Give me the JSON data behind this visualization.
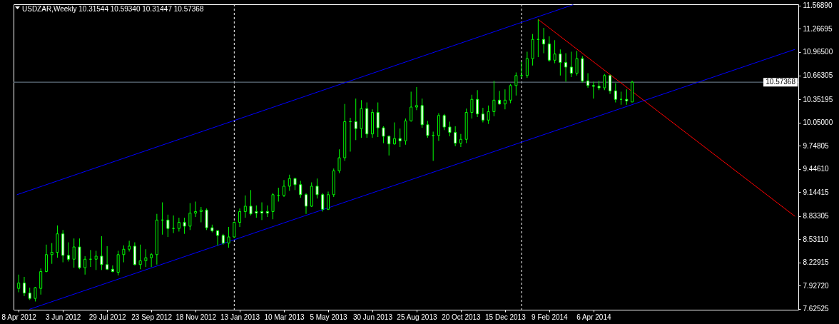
{
  "chart_data": {
    "type": "candlestick",
    "title": "USDZAR,Weekly 10.31544 10.59340 10.31447 10.57368",
    "x": [
      "2012-04-08",
      "2012-04-15",
      "2012-04-22",
      "2012-04-29",
      "2012-05-06",
      "2012-05-13",
      "2012-05-20",
      "2012-05-27",
      "2012-06-03",
      "2012-06-10",
      "2012-06-17",
      "2012-06-24",
      "2012-07-01",
      "2012-07-08",
      "2012-07-15",
      "2012-07-22",
      "2012-07-29",
      "2012-08-05",
      "2012-08-12",
      "2012-08-19",
      "2012-08-26",
      "2012-09-02",
      "2012-09-09",
      "2012-09-16",
      "2012-09-23",
      "2012-09-30",
      "2012-10-07",
      "2012-10-14",
      "2012-10-21",
      "2012-10-28",
      "2012-11-04",
      "2012-11-11",
      "2012-11-18",
      "2012-11-25",
      "2012-12-02",
      "2012-12-09",
      "2012-12-16",
      "2012-12-23",
      "2012-12-30",
      "2013-01-06",
      "2013-01-13",
      "2013-01-20",
      "2013-01-27",
      "2013-02-03",
      "2013-02-10",
      "2013-02-17",
      "2013-02-24",
      "2013-03-03",
      "2013-03-10",
      "2013-03-17",
      "2013-03-24",
      "2013-03-31",
      "2013-04-07",
      "2013-04-14",
      "2013-04-21",
      "2013-04-28",
      "2013-05-05",
      "2013-05-12",
      "2013-05-19",
      "2013-05-26",
      "2013-06-02",
      "2013-06-09",
      "2013-06-16",
      "2013-06-23",
      "2013-06-30",
      "2013-07-07",
      "2013-07-14",
      "2013-07-21",
      "2013-07-28",
      "2013-08-04",
      "2013-08-11",
      "2013-08-18",
      "2013-08-25",
      "2013-09-01",
      "2013-09-08",
      "2013-09-15",
      "2013-09-22",
      "2013-09-29",
      "2013-10-06",
      "2013-10-13",
      "2013-10-20",
      "2013-10-27",
      "2013-11-03",
      "2013-11-10",
      "2013-11-17",
      "2013-11-24",
      "2013-12-01",
      "2013-12-08",
      "2013-12-15",
      "2013-12-22",
      "2013-12-29",
      "2014-01-05",
      "2014-01-12",
      "2014-01-19",
      "2014-01-26",
      "2014-02-02",
      "2014-02-09",
      "2014-02-16",
      "2014-02-23",
      "2014-03-02",
      "2014-03-09",
      "2014-03-16",
      "2014-03-23",
      "2014-03-30",
      "2014-04-06",
      "2014-04-13",
      "2014-04-20",
      "2014-04-27",
      "2014-05-04",
      "2014-05-11",
      "2014-05-18",
      "2014-05-25"
    ],
    "ohlc": [
      [
        7.89,
        8.07,
        7.84,
        7.96
      ],
      [
        7.96,
        8.04,
        7.79,
        7.83
      ],
      [
        7.83,
        7.9,
        7.74,
        7.76
      ],
      [
        7.76,
        7.91,
        7.72,
        7.9
      ],
      [
        7.89,
        8.15,
        7.81,
        8.11
      ],
      [
        8.11,
        8.46,
        8.1,
        8.33
      ],
      [
        8.33,
        8.48,
        8.21,
        8.36
      ],
      [
        8.36,
        8.71,
        8.29,
        8.6
      ],
      [
        8.6,
        8.65,
        8.23,
        8.32
      ],
      [
        8.32,
        8.49,
        8.24,
        8.27
      ],
      [
        8.27,
        8.54,
        8.16,
        8.43
      ],
      [
        8.43,
        8.54,
        8.14,
        8.16
      ],
      [
        8.16,
        8.31,
        8.07,
        8.27
      ],
      [
        8.27,
        8.39,
        8.17,
        8.27
      ],
      [
        8.27,
        8.38,
        8.13,
        8.31
      ],
      [
        8.31,
        8.57,
        8.13,
        8.2
      ],
      [
        8.2,
        8.44,
        8.13,
        8.14
      ],
      [
        8.14,
        8.19,
        8.1,
        8.11
      ],
      [
        8.1,
        8.38,
        8.06,
        8.33
      ],
      [
        8.33,
        8.45,
        8.23,
        8.4
      ],
      [
        8.4,
        8.51,
        8.37,
        8.44
      ],
      [
        8.44,
        8.49,
        8.19,
        8.2
      ],
      [
        8.2,
        8.46,
        8.14,
        8.25
      ],
      [
        8.25,
        8.4,
        8.17,
        8.29
      ],
      [
        8.29,
        8.35,
        8.17,
        8.33
      ],
      [
        8.33,
        8.86,
        8.2,
        8.78
      ],
      [
        8.78,
        9.01,
        8.59,
        8.78
      ],
      [
        8.78,
        8.85,
        8.56,
        8.67
      ],
      [
        8.67,
        8.84,
        8.61,
        8.67
      ],
      [
        8.67,
        8.81,
        8.63,
        8.75
      ],
      [
        8.75,
        8.81,
        8.6,
        8.7
      ],
      [
        8.7,
        9.0,
        8.65,
        8.87
      ],
      [
        8.87,
        9.02,
        8.82,
        8.89
      ],
      [
        8.89,
        8.95,
        8.75,
        8.91
      ],
      [
        8.91,
        8.93,
        8.65,
        8.68
      ],
      [
        8.68,
        8.72,
        8.62,
        8.64
      ],
      [
        8.64,
        8.65,
        8.45,
        8.58
      ],
      [
        8.58,
        8.6,
        8.46,
        8.48
      ],
      [
        8.48,
        8.69,
        8.42,
        8.56
      ],
      [
        8.56,
        8.76,
        8.55,
        8.75
      ],
      [
        8.75,
        8.93,
        8.69,
        8.89
      ],
      [
        8.89,
        9.1,
        8.81,
        8.96
      ],
      [
        8.96,
        9.17,
        8.84,
        8.86
      ],
      [
        8.89,
        8.97,
        8.81,
        8.87
      ],
      [
        8.89,
        9.01,
        8.78,
        8.87
      ],
      [
        8.89,
        8.97,
        8.82,
        8.87
      ],
      [
        8.89,
        9.13,
        8.79,
        9.11
      ],
      [
        9.1,
        9.2,
        9.02,
        9.1
      ],
      [
        9.1,
        9.3,
        9.08,
        9.22
      ],
      [
        9.22,
        9.37,
        9.16,
        9.32
      ],
      [
        9.32,
        9.33,
        9.17,
        9.24
      ],
      [
        9.24,
        9.29,
        9.07,
        9.11
      ],
      [
        9.11,
        9.13,
        8.86,
        8.96
      ],
      [
        8.96,
        9.27,
        8.95,
        9.22
      ],
      [
        9.22,
        9.32,
        9.06,
        9.11
      ],
      [
        9.11,
        9.13,
        8.89,
        8.92
      ],
      [
        8.92,
        9.15,
        8.91,
        9.11
      ],
      [
        9.11,
        9.45,
        9.08,
        9.42
      ],
      [
        9.42,
        9.7,
        9.39,
        9.59
      ],
      [
        9.59,
        10.29,
        9.55,
        10.06
      ],
      [
        10.06,
        10.11,
        9.67,
        10.06
      ],
      [
        10.06,
        10.36,
        9.82,
        9.97
      ],
      [
        9.97,
        10.34,
        9.85,
        10.23
      ],
      [
        10.23,
        10.31,
        9.85,
        9.9
      ],
      [
        9.9,
        10.22,
        9.85,
        10.18
      ],
      [
        10.18,
        10.31,
        9.86,
        9.98
      ],
      [
        9.98,
        10.0,
        9.78,
        9.87
      ],
      [
        9.87,
        9.88,
        9.62,
        9.77
      ],
      [
        9.77,
        10.05,
        9.76,
        9.84
      ],
      [
        9.84,
        9.97,
        9.73,
        9.81
      ],
      [
        9.81,
        10.1,
        9.76,
        10.07
      ],
      [
        10.07,
        10.45,
        10.06,
        10.25
      ],
      [
        10.25,
        10.51,
        10.21,
        10.27
      ],
      [
        10.27,
        10.36,
        9.98,
        10.02
      ],
      [
        10.02,
        10.07,
        9.85,
        9.88
      ],
      [
        9.88,
        9.93,
        9.55,
        9.88
      ],
      [
        9.88,
        10.17,
        9.81,
        10.14
      ],
      [
        10.14,
        10.16,
        9.95,
        9.99
      ],
      [
        9.99,
        10.06,
        9.87,
        9.92
      ],
      [
        9.92,
        10.0,
        9.74,
        9.78
      ],
      [
        9.78,
        9.9,
        9.73,
        9.83
      ],
      [
        9.83,
        10.23,
        9.78,
        10.18
      ],
      [
        10.18,
        10.41,
        10.1,
        10.35
      ],
      [
        10.35,
        10.47,
        10.12,
        10.16
      ],
      [
        10.16,
        10.24,
        10.05,
        10.08
      ],
      [
        10.08,
        10.27,
        10.03,
        10.19
      ],
      [
        10.19,
        10.59,
        10.13,
        10.34
      ],
      [
        10.34,
        10.46,
        10.28,
        10.29
      ],
      [
        10.29,
        10.48,
        10.22,
        10.34
      ],
      [
        10.34,
        10.55,
        10.3,
        10.53
      ],
      [
        10.53,
        10.7,
        10.4,
        10.66
      ],
      [
        10.66,
        10.84,
        10.63,
        10.66
      ],
      [
        10.66,
        10.97,
        10.63,
        10.88
      ],
      [
        10.88,
        11.2,
        10.79,
        11.13
      ],
      [
        11.13,
        11.39,
        10.9,
        11.13
      ],
      [
        11.13,
        11.28,
        10.95,
        11.07
      ],
      [
        11.07,
        11.17,
        10.84,
        10.86
      ],
      [
        10.86,
        11.12,
        10.82,
        10.94
      ],
      [
        10.94,
        11.0,
        10.66,
        10.83
      ],
      [
        10.83,
        10.95,
        10.58,
        10.77
      ],
      [
        10.77,
        10.97,
        10.64,
        10.69
      ],
      [
        10.69,
        10.98,
        10.66,
        10.88
      ],
      [
        10.88,
        10.91,
        10.57,
        10.59
      ],
      [
        10.59,
        10.69,
        10.5,
        10.53
      ],
      [
        10.53,
        10.58,
        10.36,
        10.52
      ],
      [
        10.52,
        10.59,
        10.47,
        10.5
      ],
      [
        10.5,
        10.68,
        10.47,
        10.66
      ],
      [
        10.66,
        10.67,
        10.42,
        10.46
      ],
      [
        10.46,
        10.56,
        10.31,
        10.35
      ],
      [
        10.35,
        10.45,
        10.28,
        10.35
      ],
      [
        10.35,
        10.48,
        10.28,
        10.33
      ],
      [
        10.31544,
        10.5934,
        10.31447,
        10.57368
      ]
    ],
    "color": "#00ff00",
    "colors": [
      "#000000",
      "#ffffff",
      "#ffffff",
      "#000000",
      "#000000",
      "#000000",
      "#000000",
      "#000000",
      "#ffffff",
      "#ffffff",
      "#000000",
      "#ffffff",
      "#000000",
      "#00ff00",
      "#000000",
      "#ffffff",
      "#ffffff",
      "#ffffff",
      "#000000",
      "#000000",
      "#000000",
      "#ffffff",
      "#000000",
      "#000000",
      "#000000",
      "#000000",
      "#00ff00",
      "#ffffff",
      "#00ff00",
      "#000000",
      "#ffffff",
      "#000000",
      "#000000",
      "#000000",
      "#ffffff",
      "#ffffff",
      "#ffffff",
      "#ffffff",
      "#000000",
      "#000000",
      "#000000",
      "#000000",
      "#ffffff",
      "#ffffff",
      "#ffffff",
      "#ffffff",
      "#000000",
      "#00ff00",
      "#000000",
      "#000000",
      "#ffffff",
      "#ffffff",
      "#ffffff",
      "#000000",
      "#ffffff",
      "#ffffff",
      "#000000",
      "#000000",
      "#000000",
      "#000000",
      "#00ff00",
      "#ffffff",
      "#000000",
      "#ffffff",
      "#000000",
      "#ffffff",
      "#ffffff",
      "#ffffff",
      "#000000",
      "#ffffff",
      "#000000",
      "#000000",
      "#000000",
      "#ffffff",
      "#ffffff",
      "#00ff00",
      "#000000",
      "#ffffff",
      "#ffffff",
      "#ffffff",
      "#000000",
      "#000000",
      "#000000",
      "#ffffff",
      "#ffffff",
      "#000000",
      "#000000",
      "#ffffff",
      "#000000",
      "#000000",
      "#000000",
      "#00ff00",
      "#000000",
      "#000000",
      "#00ff00",
      "#ffffff",
      "#ffffff",
      "#000000",
      "#ffffff",
      "#ffffff",
      "#ffffff",
      "#000000",
      "#ffffff",
      "#ffffff",
      "#ffffff",
      "#ffffff",
      "#000000",
      "#ffffff",
      "#ffffff",
      "#00ff00",
      "#ffffff",
      "#000000"
    ],
    "series": [
      {
        "type": "line",
        "color": "#0000ff",
        "x": [
          "2012-04-06",
          "2014-03-11"
        ],
        "values": [
          9.11,
          11.58
        ]
      },
      {
        "type": "line",
        "color": "#0000ff",
        "x": [
          "2012-04-22",
          "2014-12-17"
        ],
        "values": [
          7.62,
          11.0
        ]
      },
      {
        "type": "line",
        "color": "#ff0000",
        "x": [
          "2014-01-26",
          "2014-12-17"
        ],
        "values": [
          11.39,
          8.83
        ]
      }
    ],
    "xlim": [
      "2012-04-06",
      "2014-12-17"
    ],
    "xticks": [
      {
        "value": "2012-04-08",
        "label": "8 Apr 2012"
      },
      {
        "value": "2012-06-03",
        "label": "3 Jun 2012"
      },
      {
        "value": "2012-07-29",
        "label": "29 Jul 2012"
      },
      {
        "value": "2012-09-23",
        "label": "23 Sep 2012"
      },
      {
        "value": "2012-11-18",
        "label": "18 Nov 2012"
      },
      {
        "value": "2013-01-13",
        "label": "13 Jan 2013"
      },
      {
        "value": "2013-03-10",
        "label": "10 Mar 2013"
      },
      {
        "value": "2013-05-05",
        "label": "5 May 2013"
      },
      {
        "value": "2013-06-30",
        "label": "30 Jun 2013"
      },
      {
        "value": "2013-08-25",
        "label": "25 Aug 2013"
      },
      {
        "value": "2013-10-20",
        "label": "20 Oct 2013"
      },
      {
        "value": "2013-12-15",
        "label": "15 Dec 2013"
      },
      {
        "value": "2014-02-09",
        "label": "9 Feb 2014"
      },
      {
        "value": "2014-04-06",
        "label": "6 Apr 2014"
      }
    ],
    "ylim": [
      7.613,
      11.587
    ],
    "yticks": [
      {
        "value": 7.62525,
        "label": "7.62525"
      },
      {
        "value": 7.9272,
        "label": "7.92720"
      },
      {
        "value": 8.22915,
        "label": "8.22915"
      },
      {
        "value": 8.5311,
        "label": "8.53110"
      },
      {
        "value": 8.83305,
        "label": "8.83305"
      },
      {
        "value": 9.14415,
        "label": "9.14415"
      },
      {
        "value": 9.4461,
        "label": "9.44610"
      },
      {
        "value": 9.74805,
        "label": "9.74805"
      },
      {
        "value": 10.05,
        "label": "10.05000"
      },
      {
        "value": 10.35195,
        "label": "10.35195"
      },
      {
        "value": 10.66305,
        "label": "10.66305"
      },
      {
        "value": 10.965,
        "label": "10.96500"
      },
      {
        "value": 11.26695,
        "label": "11.26695"
      },
      {
        "value": 11.5689,
        "label": "11.56890"
      }
    ],
    "ref_lines": [
      {
        "axis": "x",
        "value": "2013-01-06",
        "color": "#ffffff",
        "line_style": "dashed"
      },
      {
        "axis": "x",
        "value": "2014-01-05",
        "color": "#ffffff",
        "line_style": "dashed"
      },
      {
        "axis": "y",
        "value": 10.57368,
        "label": "10.57368",
        "color": "#778899"
      }
    ]
  }
}
